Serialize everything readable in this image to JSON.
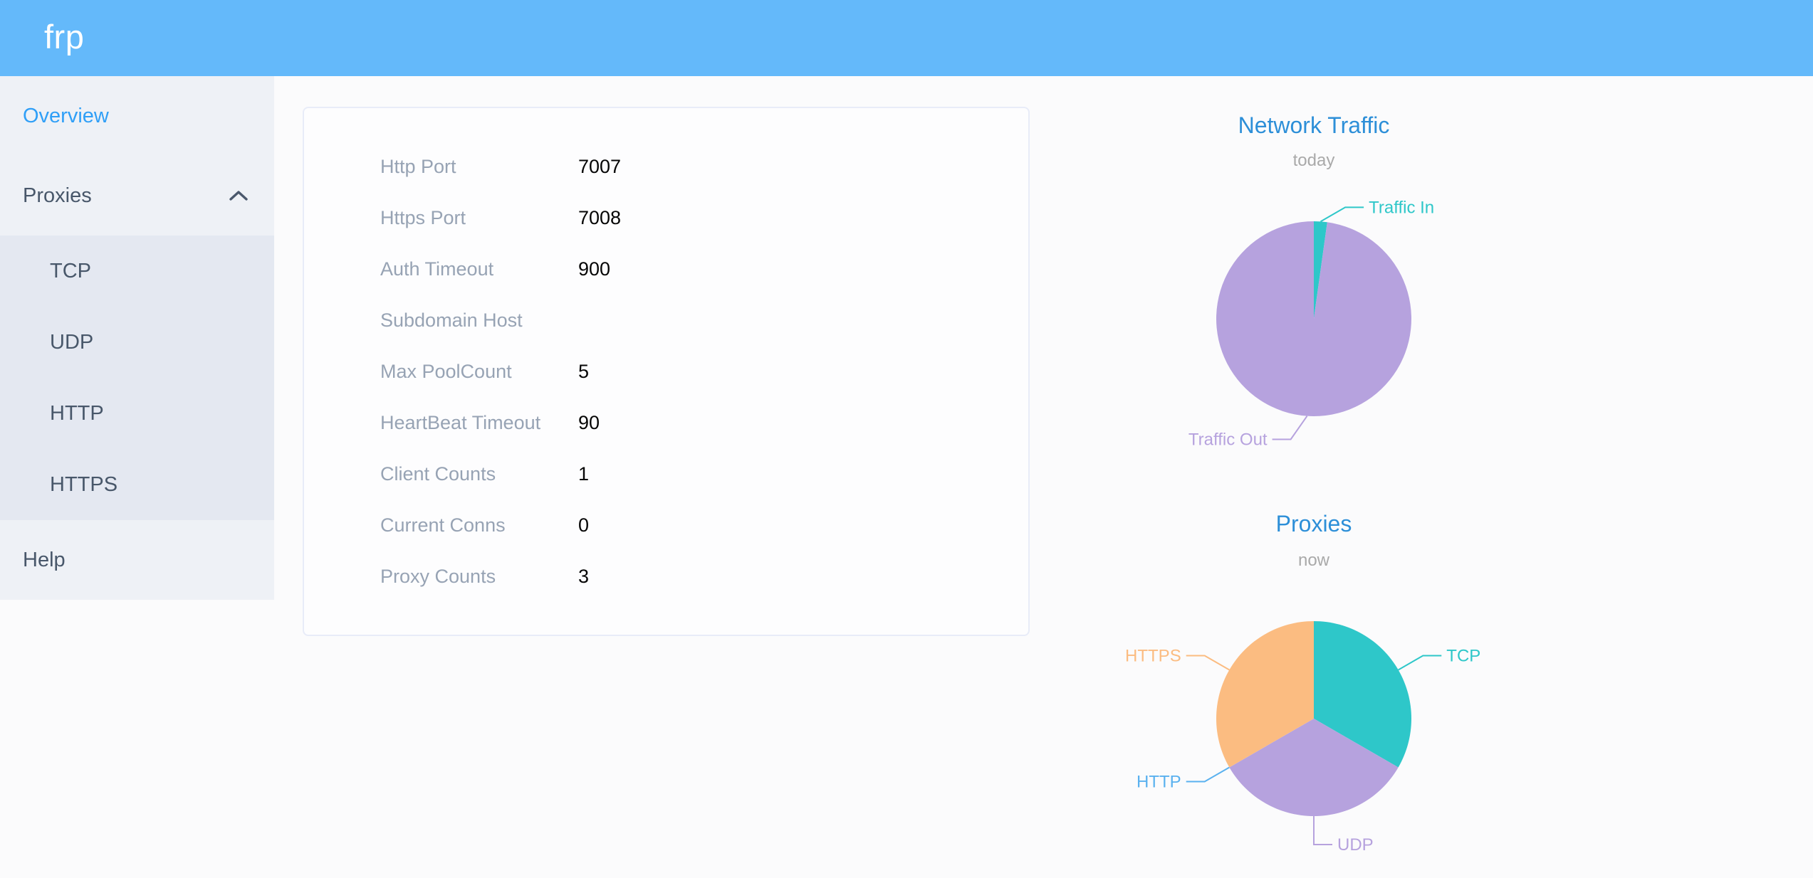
{
  "header": {
    "logo_text": "frp"
  },
  "sidebar": {
    "overview_label": "Overview",
    "proxies_label": "Proxies",
    "proxies_expanded": true,
    "proxy_types": [
      "TCP",
      "UDP",
      "HTTP",
      "HTTPS"
    ],
    "help_label": "Help"
  },
  "overview_card": {
    "rows": [
      {
        "label": "Http Port",
        "value": "7007"
      },
      {
        "label": "Https Port",
        "value": "7008"
      },
      {
        "label": "Auth Timeout",
        "value": "900"
      },
      {
        "label": "Subdomain Host",
        "value": ""
      },
      {
        "label": "Max PoolCount",
        "value": "5"
      },
      {
        "label": "HeartBeat Timeout",
        "value": "90"
      },
      {
        "label": "Client Counts",
        "value": "1"
      },
      {
        "label": "Current Conns",
        "value": "0"
      },
      {
        "label": "Proxy Counts",
        "value": "3"
      }
    ]
  },
  "chart_data": [
    {
      "type": "pie",
      "title": "Network Traffic",
      "subtitle": "today",
      "legend_position": "none",
      "labels": "outside-with-leader-lines",
      "series": [
        {
          "name": "Traffic In",
          "value": 2.2,
          "percent_est": 2.2,
          "color": "#2ec7c9",
          "label_side": "right",
          "leader_dir": 60
        },
        {
          "name": "Traffic Out",
          "value": 97.8,
          "percent_est": 97.8,
          "color": "#b6a2de",
          "label_side": "left",
          "leader_dir": 215
        }
      ]
    },
    {
      "type": "pie",
      "title": "Proxies",
      "subtitle": "now",
      "legend_position": "none",
      "labels": "outside-with-leader-lines",
      "series": [
        {
          "name": "TCP",
          "value": 1,
          "color": "#2ec7c9",
          "label_side": "right"
        },
        {
          "name": "UDP",
          "value": 1,
          "color": "#b6a2de",
          "label_side": "right"
        },
        {
          "name": "HTTP",
          "value": 0,
          "color": "#5ab1ef",
          "label_side": "left"
        },
        {
          "name": "HTTPS",
          "value": 1,
          "color": "#fbbc81",
          "label_side": "left"
        }
      ]
    }
  ],
  "colors": {
    "header_bg": "#64b9fa",
    "sidebar_bg": "#eef1f6",
    "submenu_bg": "#e4e8f1",
    "sidebar_text": "#48576a",
    "sidebar_active_text": "#2f9ff7",
    "chart_title": "#2d8fd8",
    "chart_subtitle": "#a9a9a9",
    "card_label": "#97a3b4",
    "card_value": "#060606"
  }
}
